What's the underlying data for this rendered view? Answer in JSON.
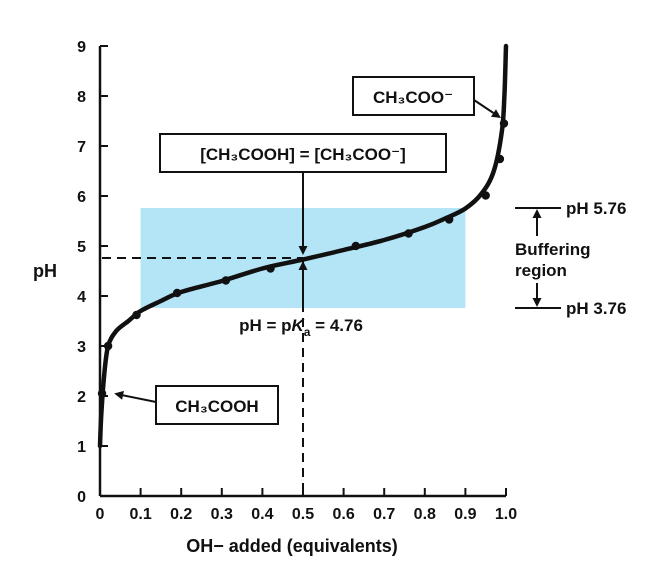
{
  "chart_data": {
    "type": "line",
    "title": "",
    "xlabel": "OH− added (equivalents)",
    "ylabel": "pH",
    "xlim": [
      0,
      1.0
    ],
    "ylim": [
      0,
      9
    ],
    "x_ticks": [
      "0",
      "0.1",
      "0.2",
      "0.3",
      "0.4",
      "0.5",
      "0.6",
      "0.7",
      "0.8",
      "0.9",
      "1.0"
    ],
    "y_ticks": [
      "0",
      "1",
      "2",
      "3",
      "4",
      "5",
      "6",
      "7",
      "8",
      "9"
    ],
    "grid": false,
    "series": [
      {
        "x": [
          0.0,
          0.003,
          0.01,
          0.02,
          0.04,
          0.07,
          0.1,
          0.15,
          0.2,
          0.3,
          0.4,
          0.5,
          0.6,
          0.7,
          0.8,
          0.85,
          0.9,
          0.94,
          0.97,
          0.99,
          0.996,
          1.0
        ],
        "y": [
          1.0,
          1.6,
          2.4,
          3.0,
          3.3,
          3.5,
          3.7,
          3.9,
          4.08,
          4.3,
          4.55,
          4.73,
          4.92,
          5.12,
          5.38,
          5.55,
          5.75,
          6.05,
          6.5,
          7.3,
          8.0,
          9.0
        ],
        "markers": [
          {
            "x": 0.005,
            "y": 2.05
          },
          {
            "x": 0.02,
            "y": 3.0
          },
          {
            "x": 0.09,
            "y": 3.62
          },
          {
            "x": 0.19,
            "y": 4.06
          },
          {
            "x": 0.31,
            "y": 4.31
          },
          {
            "x": 0.42,
            "y": 4.55
          },
          {
            "x": 0.63,
            "y": 5.0
          },
          {
            "x": 0.76,
            "y": 5.25
          },
          {
            "x": 0.86,
            "y": 5.53
          },
          {
            "x": 0.95,
            "y": 6.01
          },
          {
            "x": 0.985,
            "y": 6.74
          },
          {
            "x": 0.995,
            "y": 7.45
          }
        ]
      }
    ],
    "buffering_region": {
      "x": [
        0.1,
        0.9
      ],
      "y": [
        3.76,
        5.76
      ]
    },
    "pka_point": {
      "x": 0.5,
      "y": 4.76
    },
    "annotations": {
      "equality_box": "[CH₃COOH] = [CH₃COO⁻]",
      "pka_label_prefix": "pH = p",
      "pka_label_K": "K",
      "pka_label_sub": "a",
      "pka_label_suffix": " = 4.76",
      "acid_box": "CH₃COOH",
      "base_box": "CH₃COO⁻",
      "ph_high": "pH 5.76",
      "ph_low": "pH 3.76",
      "buffer_label_1": "Buffering",
      "buffer_label_2": "region"
    },
    "colors": {
      "curve": "#111111",
      "buffer_fill": "#b3e5f7",
      "axis": "#111111"
    }
  }
}
